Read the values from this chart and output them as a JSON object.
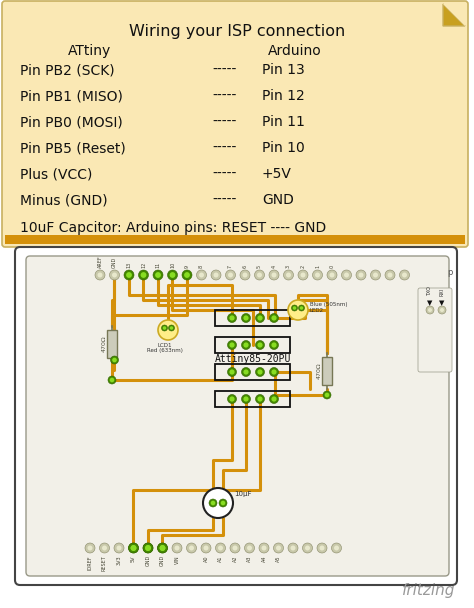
{
  "title": "Wiring your ISP connection",
  "note_bg": "#FAE8B4",
  "note_border": "#C8B060",
  "orange_bar": "#D4900A",
  "header_attiny": "ATtiny",
  "header_arduino": "Arduino",
  "rows": [
    {
      "attiny": "Pin PB2 (SCK)",
      "dashes": "-----",
      "arduino": "Pin 13"
    },
    {
      "attiny": "Pin PB1 (MISO)",
      "dashes": "-----",
      "arduino": "Pin 12"
    },
    {
      "attiny": "Pin PB0 (MOSI)",
      "dashes": "-----",
      "arduino": "Pin 11"
    },
    {
      "attiny": "Pin PB5 (Reset)",
      "dashes": "-----",
      "arduino": "Pin 10"
    },
    {
      "attiny": "Plus (VCC)",
      "dashes": "-----",
      "arduino": "+5V"
    },
    {
      "attiny": "Minus (GND)",
      "dashes": "-----",
      "arduino": "GND"
    }
  ],
  "bottom_note": "10uF Capcitor: Arduino pins: RESET ---- GND",
  "text_color": "#111111",
  "fold_color": "#C8A020",
  "board_bg": "#FFFFFF",
  "board_border": "#444444",
  "fritzing_text": "fritzing",
  "fritzing_color": "#999999",
  "orange_wire": "#D4900A",
  "green_dot_outer": "#448800",
  "green_dot_inner": "#88DD22",
  "plain_dot_outer": "#AAAAAA",
  "plain_dot_inner": "#DDDDCC",
  "resistor_body": "#CCCCBB",
  "resistor_border": "#777755",
  "ic_bg": "#FFFFFF",
  "ic_border": "#111111",
  "led_body": "#FFEE88",
  "led_border": "#CCAA22",
  "cap_body": "#FFFFFF",
  "cap_border": "#222222"
}
